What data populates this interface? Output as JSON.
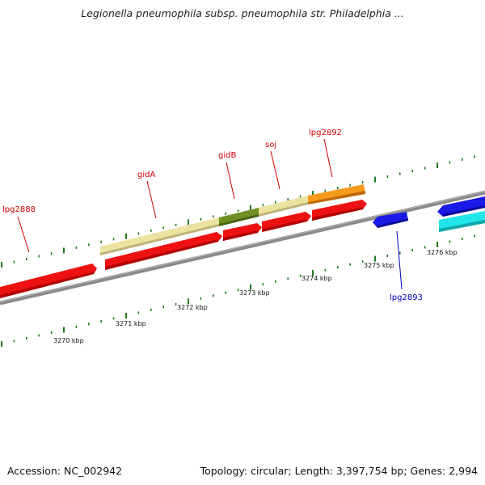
{
  "title": "Legionella pneumophila subsp. pneumophila str. Philadelphia ...",
  "footer": {
    "accession": "Accession: NC_002942",
    "summary": "Topology: circular; Length: 3,397,754 bp; Genes: 2,994"
  },
  "colors": {
    "forward_gene": "#ee1111",
    "reverse_gene": "#1a1ae6",
    "reverse_gene_alt": "#22e6ea",
    "feature_pale": "#ece3a0",
    "feature_olive": "#6e8f23",
    "feature_orange": "#f59a1a",
    "backbone": "#8a8a8a",
    "ticks": "#1e7a1e",
    "forward_label": "#cc0000",
    "reverse_label": "#0000bb"
  },
  "scale_labels": [
    "3270 kbp",
    "3271 kbp",
    "3272 kbp",
    "3273 kbp",
    "3274 kbp",
    "3275 kbp",
    "3276 kbp"
  ],
  "gene_labels": [
    {
      "text": "lpg2888",
      "strand": "forward"
    },
    {
      "text": "gidA",
      "strand": "forward"
    },
    {
      "text": "gidB",
      "strand": "forward"
    },
    {
      "text": "soj",
      "strand": "forward"
    },
    {
      "text": "lpg2892",
      "strand": "forward"
    },
    {
      "text": "lpg2893",
      "strand": "reverse"
    }
  ]
}
